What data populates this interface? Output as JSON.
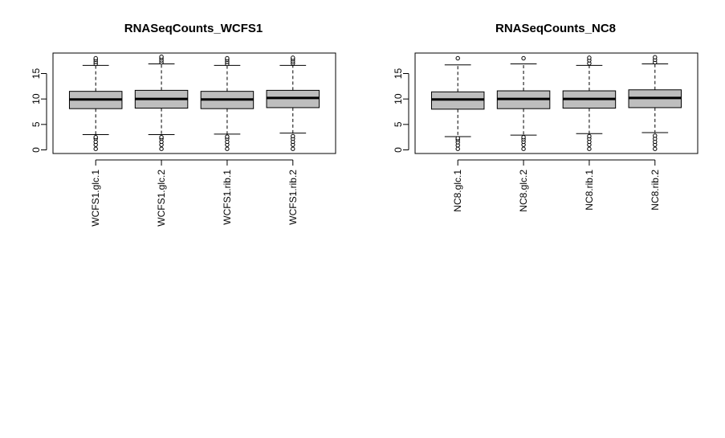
{
  "chart_data": [
    {
      "type": "boxplot",
      "title": "RNASeqCounts_WCFS1",
      "xlabel": "",
      "ylabel": "",
      "ylim": [
        -0.6,
        19
      ],
      "yticks": [
        0,
        5,
        10,
        15
      ],
      "box_fill": "#bebebe",
      "categories": [
        "WCFS1.glc.1",
        "WCFS1.glc.2",
        "WCFS1.rib.1",
        "WCFS1.rib.2"
      ],
      "boxes": [
        {
          "whisker_low": 3.0,
          "q1": 8.1,
          "median": 9.9,
          "q3": 11.5,
          "whisker_high": 16.6,
          "outliers_low": [
            0.2,
            1.0,
            1.6,
            2.2,
            2.5
          ],
          "outliers_high": [
            16.9,
            17.3,
            17.7,
            18.0
          ]
        },
        {
          "whisker_low": 3.0,
          "q1": 8.2,
          "median": 10.0,
          "q3": 11.7,
          "whisker_high": 16.9,
          "outliers_low": [
            0.2,
            1.0,
            1.6,
            2.2,
            2.5
          ],
          "outliers_high": [
            17.2,
            17.6,
            18.0,
            18.3
          ]
        },
        {
          "whisker_low": 3.1,
          "q1": 8.1,
          "median": 9.9,
          "q3": 11.5,
          "whisker_high": 16.6,
          "outliers_low": [
            0.2,
            1.0,
            1.6,
            2.2,
            2.6
          ],
          "outliers_high": [
            16.9,
            17.3,
            17.7,
            18.0
          ]
        },
        {
          "whisker_low": 3.3,
          "q1": 8.3,
          "median": 10.2,
          "q3": 11.7,
          "whisker_high": 16.6,
          "outliers_low": [
            0.2,
            1.0,
            1.6,
            2.2,
            2.7
          ],
          "outliers_high": [
            17.0,
            17.4,
            17.8,
            18.1
          ]
        }
      ]
    },
    {
      "type": "boxplot",
      "title": "RNASeqCounts_NC8",
      "xlabel": "",
      "ylabel": "",
      "ylim": [
        -0.6,
        19
      ],
      "yticks": [
        0,
        5,
        10,
        15
      ],
      "box_fill": "#bebebe",
      "categories": [
        "NC8.glc.1",
        "NC8.glc.2",
        "NC8.rib.1",
        "NC8.rib.2"
      ],
      "boxes": [
        {
          "whisker_low": 2.6,
          "q1": 8.0,
          "median": 9.9,
          "q3": 11.4,
          "whisker_high": 16.7,
          "outliers_low": [
            0.2,
            0.9,
            1.5,
            2.0,
            2.3
          ],
          "outliers_high": [
            18.0
          ]
        },
        {
          "whisker_low": 2.9,
          "q1": 8.1,
          "median": 10.0,
          "q3": 11.6,
          "whisker_high": 16.9,
          "outliers_low": [
            0.2,
            1.0,
            1.6,
            2.1,
            2.5
          ],
          "outliers_high": [
            18.0
          ]
        },
        {
          "whisker_low": 3.2,
          "q1": 8.2,
          "median": 10.0,
          "q3": 11.6,
          "whisker_high": 16.6,
          "outliers_low": [
            0.2,
            1.0,
            1.6,
            2.2,
            2.7
          ],
          "outliers_high": [
            17.0,
            17.6,
            18.1
          ]
        },
        {
          "whisker_low": 3.4,
          "q1": 8.3,
          "median": 10.2,
          "q3": 11.8,
          "whisker_high": 16.9,
          "outliers_low": [
            0.2,
            1.0,
            1.6,
            2.2,
            2.8
          ],
          "outliers_high": [
            17.2,
            17.7,
            18.2
          ]
        }
      ]
    }
  ]
}
